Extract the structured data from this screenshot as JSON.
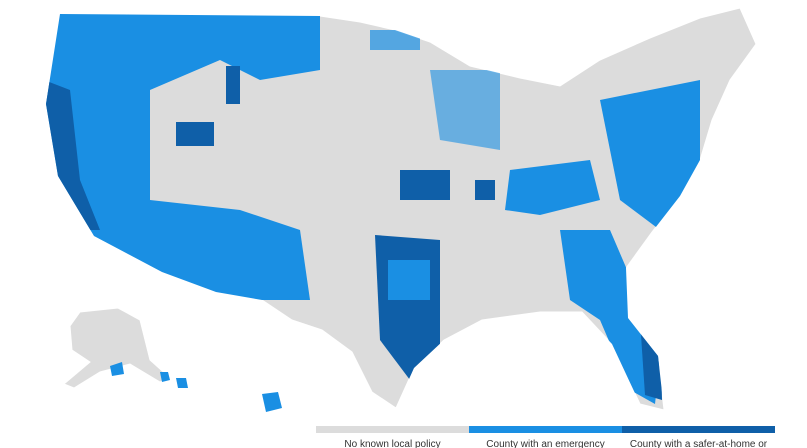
{
  "legend": {
    "items": [
      {
        "label": "No known local policy",
        "color": "#dcdcdc"
      },
      {
        "label": "County with an emergency",
        "color": "#1a8fe3"
      },
      {
        "label": "County with a safer-at-home or",
        "color": "#0f5fa8"
      }
    ]
  }
}
